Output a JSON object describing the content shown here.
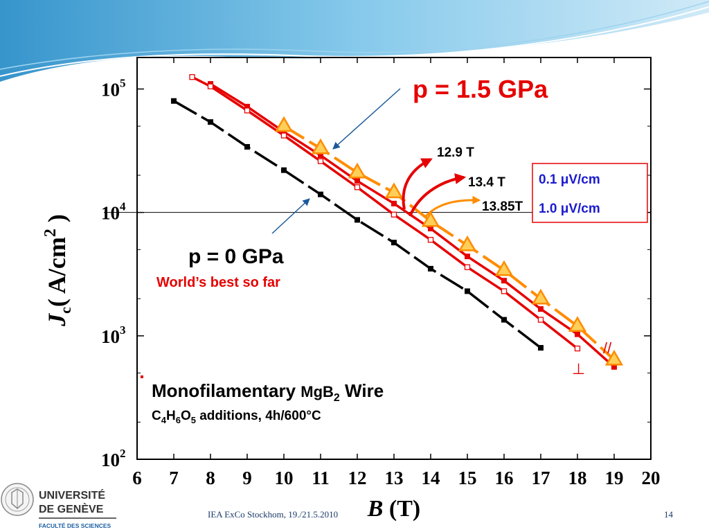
{
  "chart_data": {
    "type": "line",
    "yscale": "log",
    "xlabel_main": "B",
    "xlabel_unit": " (T)",
    "ylabel": {
      "j": "J",
      "c": "c",
      "unit": "( A/cm",
      "exp": "2",
      "close": " )"
    },
    "xlim": [
      6,
      20
    ],
    "ylim": [
      100,
      180000
    ],
    "x_ticks": [
      "6",
      "7",
      "8",
      "9",
      "10",
      "11",
      "12",
      "13",
      "14",
      "15",
      "16",
      "17",
      "18",
      "19",
      "20"
    ],
    "y_ticks": [
      {
        "base": "10",
        "exp": "2",
        "value": 100
      },
      {
        "base": "10",
        "exp": "3",
        "value": 1000
      },
      {
        "base": "10",
        "exp": "4",
        "value": 10000
      },
      {
        "base": "10",
        "exp": "5",
        "value": 100000
      }
    ],
    "reference_line_y": 10000,
    "series": [
      {
        "marker": "filled-square",
        "color": "#000000",
        "x": [
          7,
          8,
          9,
          10,
          11,
          12,
          13,
          14,
          15,
          16,
          17
        ],
        "y": [
          80000,
          54000,
          34000,
          22000,
          14000,
          8700,
          5700,
          3500,
          2300,
          1350,
          800
        ]
      },
      {
        "marker": "filled-square",
        "color": "#e60000",
        "x": [
          8,
          9,
          10,
          11,
          12,
          13,
          14,
          15,
          16,
          17,
          18,
          19
        ],
        "y": [
          110000,
          72000,
          45000,
          29000,
          18000,
          11800,
          7400,
          4400,
          2800,
          1650,
          1030,
          560
        ]
      },
      {
        "marker": "open-square",
        "color": "#e60000",
        "x": [
          7.5,
          8,
          9,
          10,
          11,
          12,
          13,
          14,
          15,
          16,
          17,
          18
        ],
        "y": [
          125000,
          105000,
          67000,
          42000,
          26000,
          16000,
          9600,
          6000,
          3600,
          2300,
          1350,
          790
        ]
      },
      {
        "marker": "triangle",
        "color": "#ff8c00",
        "x": [
          10,
          11,
          12,
          13,
          14,
          15,
          16,
          17,
          18,
          19
        ],
        "y": [
          50000,
          33000,
          21000,
          14500,
          8500,
          5400,
          3400,
          2000,
          1200,
          640
        ]
      }
    ],
    "annotations": {
      "p15": "p = 1.5 GPa",
      "p0": "p = 0 GPa",
      "world": "World’s best so far",
      "t129": "12.9 T",
      "t134": "13.4 T",
      "t1385": "13.85T",
      "legend_01": "0.1 μV/cm",
      "legend_10": "1.0 μV/cm",
      "parallel": "//",
      "perp": "⊥",
      "wire_a": "Monofilamentary ",
      "wire_b": "MgB",
      "wire_sub": "2",
      "wire_c": " Wire",
      "comp": {
        "c": "C",
        "s1": "4",
        "h": "H",
        "s2": "6",
        "o": "O",
        "s3": "5",
        "rest": " additions, 4h/600°C"
      }
    }
  },
  "footer": {
    "conference": "IEA ExCo Stockhom, 19./21.5.2010",
    "page_number": "14"
  },
  "logo": {
    "line1": "UNIVERSITÉ",
    "line2": "DE GENÈVE",
    "line3": "FACULTÉ DES SCIENCES"
  },
  "colors": {
    "red": "#e60000",
    "orange": "#ff8c00",
    "legend_blue": "#1a1ad0",
    "wave": "#4aa8d8"
  }
}
